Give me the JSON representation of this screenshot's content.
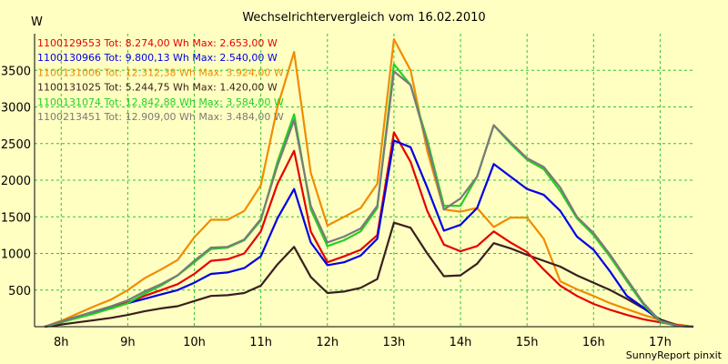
{
  "chart_data": {
    "type": "line",
    "title": "Wechselrichtervergleich vom 16.02.2010",
    "ylabel": "W",
    "xlabel": "",
    "footer": "SunnyReport pinxit",
    "ylim": [
      0,
      4000
    ],
    "xlim": [
      7.6,
      17.5
    ],
    "yticks": [
      500,
      1000,
      1500,
      2000,
      2500,
      3000,
      3500
    ],
    "xticks": [
      {
        "value": 8,
        "label": "8h"
      },
      {
        "value": 9,
        "label": "9h"
      },
      {
        "value": 10,
        "label": "10h"
      },
      {
        "value": 11,
        "label": "11h"
      },
      {
        "value": 12,
        "label": "12h"
      },
      {
        "value": 13,
        "label": "13h"
      },
      {
        "value": 14,
        "label": "14h"
      },
      {
        "value": 15,
        "label": "15h"
      },
      {
        "value": 16,
        "label": "16h"
      },
      {
        "value": 17,
        "label": "17h"
      }
    ],
    "x": [
      7.75,
      8.0,
      8.25,
      8.5,
      8.75,
      9.0,
      9.25,
      9.5,
      9.75,
      10.0,
      10.25,
      10.5,
      10.75,
      11.0,
      11.25,
      11.5,
      11.75,
      12.0,
      12.25,
      12.5,
      12.75,
      13.0,
      13.25,
      13.5,
      13.75,
      14.0,
      14.25,
      14.5,
      14.75,
      15.0,
      15.25,
      15.5,
      15.75,
      16.0,
      16.25,
      16.5,
      16.75,
      17.0,
      17.25,
      17.5
    ],
    "series": [
      {
        "name": "1100129553",
        "legend": "1100129553 Tot: 8.274,00 Wh Max: 2.653,00 W",
        "color": "#e60000",
        "values": [
          0,
          60,
          130,
          200,
          260,
          330,
          420,
          500,
          580,
          720,
          900,
          920,
          1000,
          1300,
          1950,
          2400,
          1300,
          880,
          960,
          1050,
          1250,
          2653,
          2250,
          1580,
          1120,
          1030,
          1100,
          1300,
          1150,
          1020,
          780,
          560,
          420,
          310,
          230,
          160,
          100,
          60,
          20,
          0
        ]
      },
      {
        "name": "1100130966",
        "legend": "1100130966 Tot: 9.800,13 Wh Max: 2.540,00 W",
        "color": "#0000e6",
        "values": [
          0,
          70,
          140,
          200,
          250,
          320,
          380,
          440,
          500,
          600,
          720,
          740,
          800,
          960,
          1480,
          1880,
          1150,
          840,
          880,
          970,
          1200,
          2540,
          2450,
          1900,
          1310,
          1390,
          1620,
          2220,
          2050,
          1880,
          1800,
          1580,
          1230,
          1050,
          750,
          420,
          260,
          80,
          10,
          0
        ]
      },
      {
        "name": "1100131006",
        "legend": "1100131006 Tot: 12.312,38 Wh Max: 3.924,00 W",
        "color": "#f08c00",
        "values": [
          0,
          80,
          180,
          280,
          370,
          500,
          660,
          780,
          910,
          1220,
          1460,
          1460,
          1580,
          1930,
          3000,
          3750,
          2100,
          1380,
          1500,
          1620,
          1950,
          3924,
          3500,
          2400,
          1600,
          1570,
          1620,
          1360,
          1490,
          1490,
          1200,
          620,
          510,
          420,
          320,
          240,
          160,
          90,
          30,
          0
        ]
      },
      {
        "name": "1100131025",
        "legend": "1100131025 Tot: 5.244,75 Wh Max: 1.420,00 W",
        "color": "#3a1f1f",
        "values": [
          0,
          30,
          60,
          90,
          120,
          160,
          210,
          250,
          280,
          350,
          420,
          430,
          460,
          560,
          850,
          1090,
          680,
          460,
          480,
          530,
          650,
          1420,
          1350,
          1000,
          690,
          700,
          860,
          1140,
          1070,
          980,
          900,
          820,
          700,
          600,
          500,
          380,
          250,
          100,
          20,
          0
        ]
      },
      {
        "name": "1100131074",
        "legend": "1100131074 Tot: 12.842,88 Wh Max: 3.584,00 W",
        "color": "#22d022",
        "values": [
          0,
          60,
          120,
          180,
          250,
          320,
          450,
          560,
          700,
          880,
          1060,
          1080,
          1180,
          1450,
          2250,
          2900,
          1600,
          1100,
          1180,
          1300,
          1620,
          3584,
          3300,
          2550,
          1650,
          1650,
          2050,
          2750,
          2500,
          2280,
          2150,
          1850,
          1480,
          1250,
          950,
          620,
          300,
          70,
          10,
          0
        ]
      },
      {
        "name": "1100213451",
        "legend": "1100213451 Tot: 12.909,00 Wh Max: 3.484,00 W",
        "color": "#7a7a7a",
        "values": [
          0,
          70,
          140,
          210,
          280,
          360,
          480,
          580,
          700,
          900,
          1080,
          1090,
          1190,
          1470,
          2200,
          2820,
          1650,
          1150,
          1230,
          1340,
          1650,
          3484,
          3300,
          2500,
          1600,
          1750,
          2050,
          2750,
          2520,
          2300,
          2180,
          1900,
          1500,
          1280,
          980,
          650,
          320,
          80,
          15,
          0
        ]
      }
    ]
  }
}
